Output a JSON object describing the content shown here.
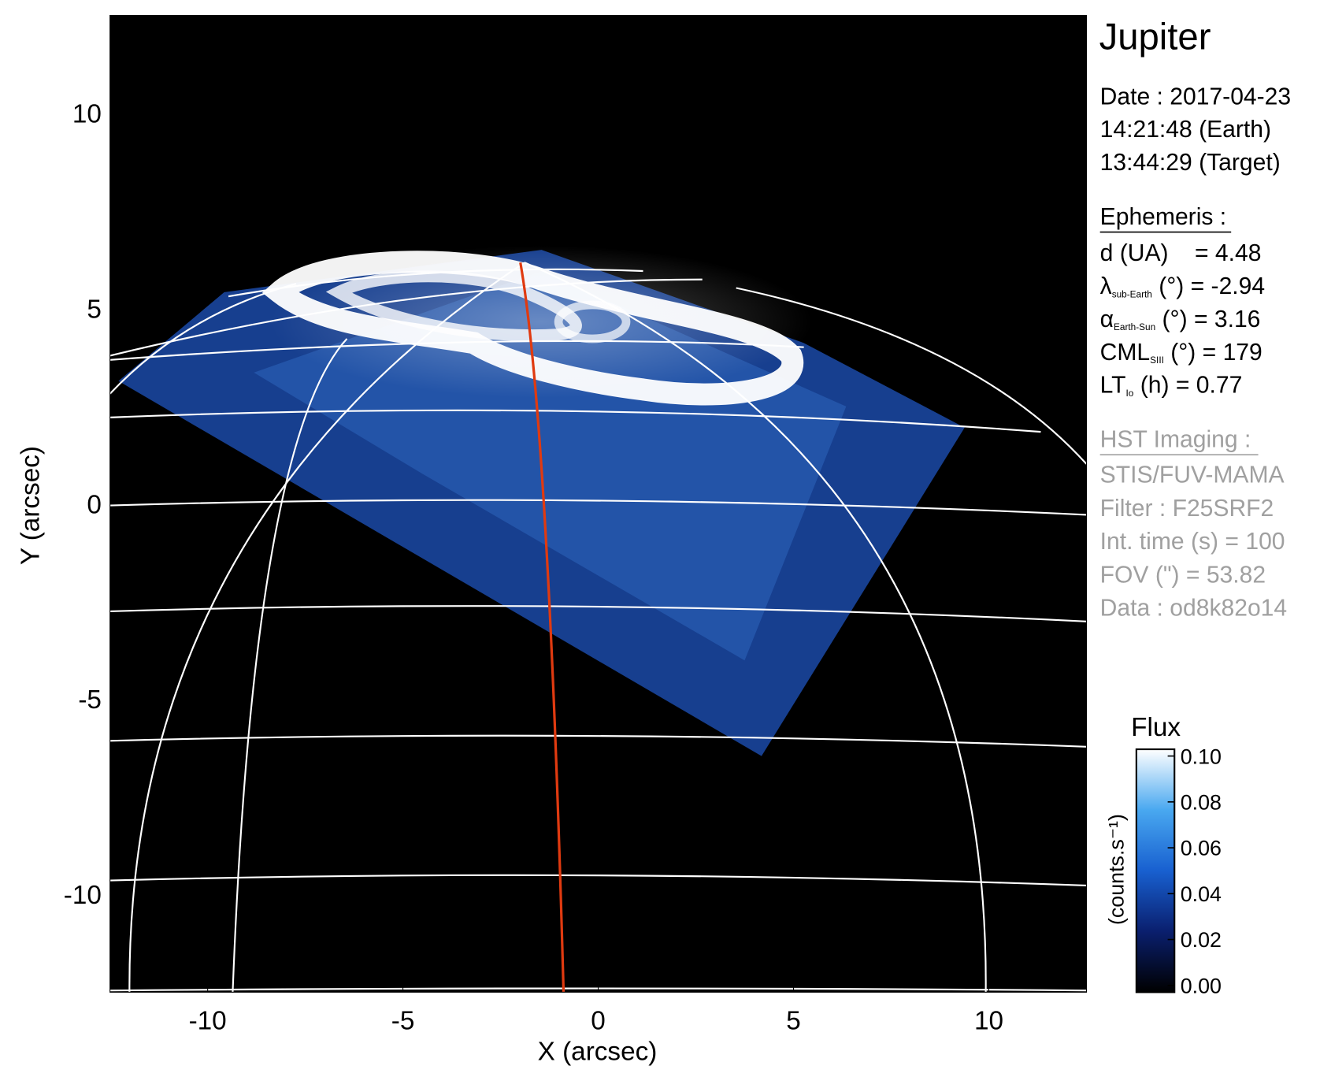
{
  "chart_data": {
    "type": "image",
    "title": "Jupiter",
    "xlabel": "X (arcsec)",
    "ylabel": "Y (arcsec)",
    "xlim": [
      -12.5,
      12.5
    ],
    "ylim": [
      -12.5,
      12.5
    ],
    "xticks": [
      -10,
      -5,
      0,
      5,
      10
    ],
    "yticks": [
      -10,
      -5,
      0,
      5,
      10
    ],
    "date_lines": [
      "Date : 2017-04-23",
      "14:21:48 (Earth)",
      "13:44:29 (Target)"
    ],
    "ephemeris_title": "Ephemeris :",
    "ephemeris": [
      {
        "symbol": "d (UA)    = 4.48"
      },
      {
        "symbol": "λ",
        "sub": "sub-Earth",
        "text": " (°) = -2.94"
      },
      {
        "symbol": "α",
        "sub": "Earth-Sun",
        "text": " (°) = 3.16"
      },
      {
        "symbol": "CML",
        "sub": "SIII",
        "text": " (°) = 179"
      },
      {
        "symbol": "LT",
        "sub": "Io",
        "text": " (h) = 0.77"
      }
    ],
    "imaging_title": "HST Imaging :",
    "imaging": [
      "STIS/FUV-MAMA",
      "Filter : F25SRF2",
      "Int. time (s) = 100",
      "FOV (\") = 53.82",
      "Data : od8k82o14"
    ],
    "colorbar": {
      "title": "Flux",
      "label": "(counts.s⁻¹)",
      "lim": [
        0,
        0.1
      ],
      "ticks": [
        {
          "value": 0,
          "label": "0.00"
        },
        {
          "value": 0.02,
          "label": "0.02"
        },
        {
          "value": 0.04,
          "label": "0.04"
        },
        {
          "value": 0.06,
          "label": "0.06"
        },
        {
          "value": 0.08,
          "label": "0.08"
        },
        {
          "value": 0.1,
          "label": "0.10"
        }
      ],
      "colors": [
        "#000000",
        "#0a1f6e",
        "#1860d0",
        "#49a8f0",
        "#ffffff"
      ]
    }
  }
}
